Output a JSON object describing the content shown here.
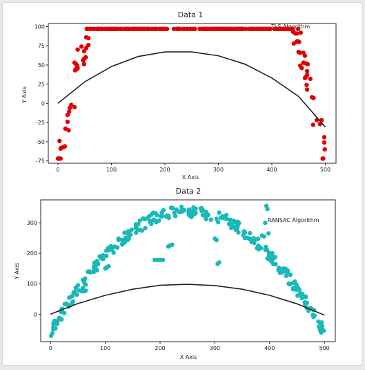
{
  "chart_data": [
    {
      "type": "scatter",
      "title": "Data 1",
      "xlabel": "X Axis",
      "ylabel": "Y Axis",
      "annotation": "TLS Algorithm",
      "xlim": [
        -18,
        520
      ],
      "ylim": [
        -78,
        104
      ],
      "xticks": [
        0,
        100,
        200,
        300,
        400,
        500
      ],
      "yticks": [
        -75,
        -50,
        -25,
        0,
        25,
        50,
        75,
        100
      ],
      "grid": false,
      "point_color": "#e00000",
      "fit_color": "#222222",
      "fit_curve": {
        "x": [
          0,
          50,
          100,
          150,
          200,
          250,
          300,
          350,
          400,
          450,
          500
        ],
        "y": [
          0,
          28,
          48,
          61,
          67,
          67,
          62,
          51,
          33,
          9,
          -31
        ]
      },
      "points": {
        "x": [],
        "y": []
      }
    },
    {
      "type": "scatter",
      "title": "Data 2",
      "xlabel": "X Axis",
      "ylabel": "Y Axis",
      "annotation": "RANSAC Algorithm",
      "xlim": [
        -18,
        520
      ],
      "ylim": [
        -90,
        375
      ],
      "xticks": [
        0,
        100,
        200,
        300,
        400,
        500
      ],
      "yticks": [
        0,
        100,
        200,
        300
      ],
      "grid": false,
      "point_color": "#1ab8b8",
      "fit_color": "#222222",
      "fit_curve": {
        "x": [
          0,
          50,
          100,
          150,
          200,
          250,
          300,
          350,
          400,
          450,
          500
        ],
        "y": [
          0,
          35,
          62,
          82,
          95,
          98,
          94,
          82,
          62,
          34,
          -3
        ]
      },
      "points": {
        "x": [],
        "y": []
      }
    }
  ]
}
